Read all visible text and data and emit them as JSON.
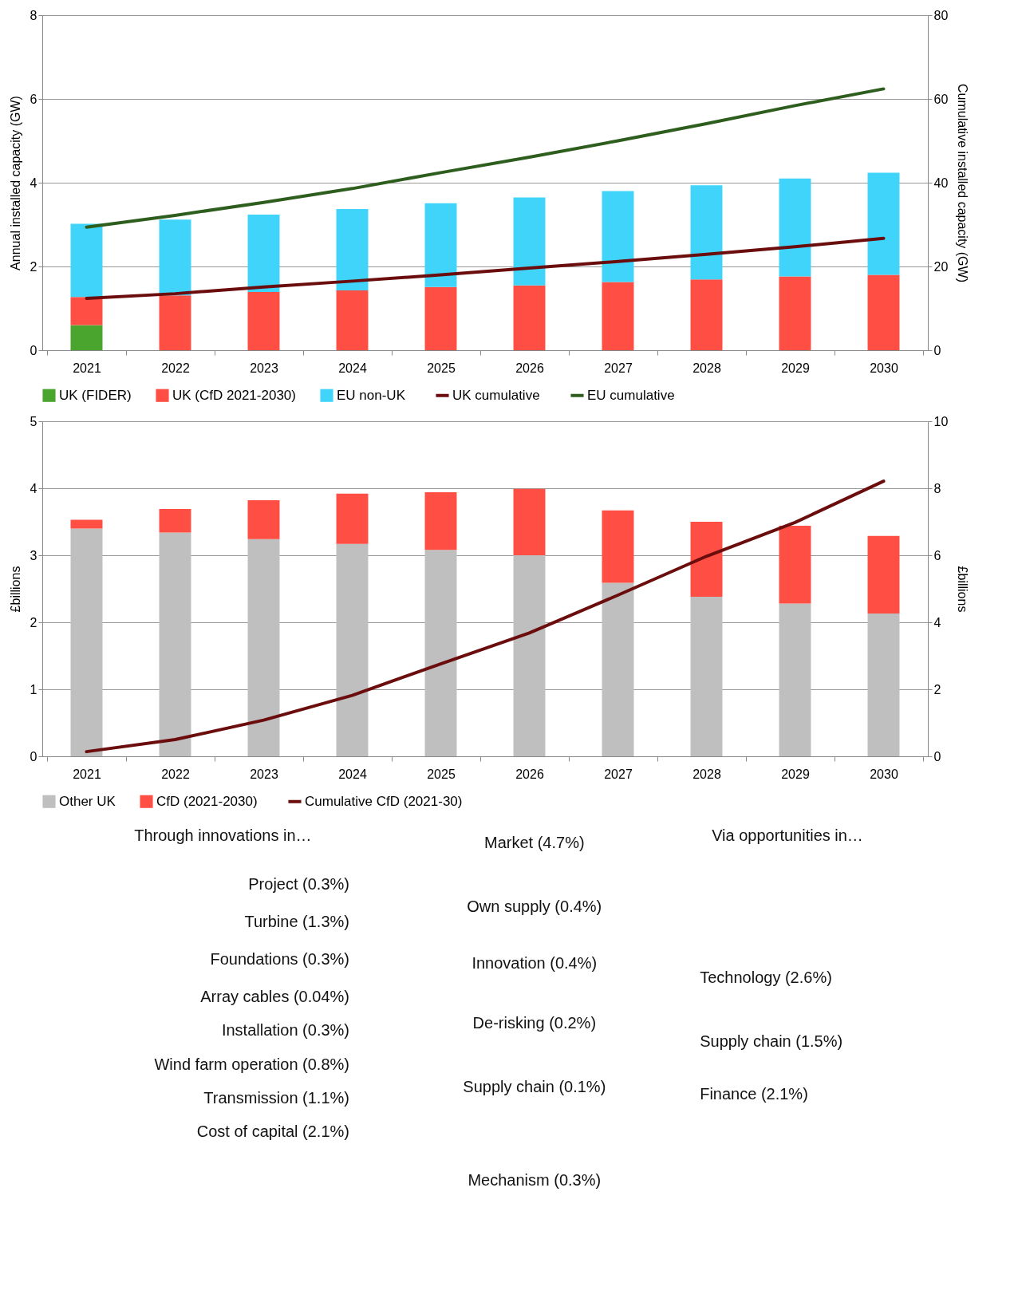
{
  "chart_data": [
    {
      "type": "bar",
      "stacked": true,
      "categories": [
        "2021",
        "2022",
        "2023",
        "2024",
        "2025",
        "2026",
        "2027",
        "2028",
        "2029",
        "2030"
      ],
      "ylabel": "Annual installed capacity (GW)",
      "y2label": "Cumulative installed capacity (GW)",
      "ylim": [
        0,
        8
      ],
      "yticks": [
        0,
        2,
        4,
        6,
        8
      ],
      "y2lim": [
        0,
        80
      ],
      "y2ticks": [
        0,
        20,
        40,
        60,
        80
      ],
      "grid": "y",
      "legend": "bottom",
      "series": [
        {
          "name": "UK (FIDER)",
          "color": "#4aa52e",
          "values": [
            0.6,
            null,
            null,
            null,
            null,
            null,
            null,
            null,
            null,
            null
          ]
        },
        {
          "name": "UK (CfD 2021-2030)",
          "color": "#ff4f45",
          "values": [
            0.67,
            1.31,
            1.39,
            1.43,
            1.51,
            1.55,
            1.63,
            1.69,
            1.76,
            1.8
          ]
        },
        {
          "name": "EU non-UK",
          "color": "#40d4fa",
          "values": [
            1.75,
            1.81,
            1.85,
            1.94,
            2.0,
            2.1,
            2.17,
            2.25,
            2.34,
            2.44
          ]
        },
        {
          "name": "UK cumulative",
          "type": "line",
          "axis": "y2",
          "color": "#6b0d0d",
          "values": [
            12.4,
            13.5,
            15.1,
            16.5,
            18.0,
            19.6,
            21.2,
            22.9,
            24.7,
            26.7
          ]
        },
        {
          "name": "EU cumulative",
          "type": "line",
          "axis": "y2",
          "color": "#2e5e1e",
          "values": [
            29.4,
            32.2,
            35.3,
            38.6,
            42.4,
            46.1,
            50.0,
            54.1,
            58.4,
            62.4
          ]
        }
      ]
    },
    {
      "type": "bar",
      "stacked": true,
      "categories": [
        "2021",
        "2022",
        "2023",
        "2024",
        "2025",
        "2026",
        "2027",
        "2028",
        "2029",
        "2030"
      ],
      "ylabel": "£billions",
      "y2label": "£billions",
      "ylim": [
        0,
        5
      ],
      "yticks": [
        0,
        1,
        2,
        3,
        4,
        5
      ],
      "y2lim": [
        0,
        10
      ],
      "y2ticks": [
        0,
        2,
        4,
        6,
        8,
        10
      ],
      "grid": "y",
      "legend": "bottom",
      "series": [
        {
          "name": "Other UK",
          "color": "#bfbfbf",
          "values": [
            3.4,
            3.34,
            3.24,
            3.17,
            3.08,
            3.0,
            2.59,
            2.38,
            2.28,
            2.13
          ]
        },
        {
          "name": "CfD (2021-2030)",
          "color": "#ff4f45",
          "values": [
            0.13,
            0.35,
            0.58,
            0.75,
            0.86,
            0.99,
            1.08,
            1.12,
            1.16,
            1.16
          ]
        },
        {
          "name": "Cumulative CfD (2021-30)",
          "type": "line",
          "axis": "y2",
          "color": "#6b0d0d",
          "values": [
            0.14,
            0.5,
            1.08,
            1.82,
            2.76,
            3.68,
            4.81,
            5.97,
            6.98,
            8.21
          ]
        }
      ]
    },
    {
      "type": "other",
      "annotations": [
        "Through innovations in…",
        "Project (0.3%)",
        "Turbine (1.3%)",
        "Foundations (0.3%)",
        "Array cables (0.04%)",
        "Installation (0.3%)",
        "Wind farm operation (0.8%)",
        "Transmission (1.1%)",
        "Cost of capital (2.1%)",
        "Market (4.7%)",
        "Own supply  (0.4%)",
        "Innovation (0.4%)",
        "De-risking (0.2%)",
        "Supply chain (0.1%)",
        "Mechanism (0.3%)",
        "Via opportunities in…",
        "Technology (2.6%)",
        "Supply chain (1.5%)",
        "Finance (2.1%)"
      ]
    }
  ]
}
